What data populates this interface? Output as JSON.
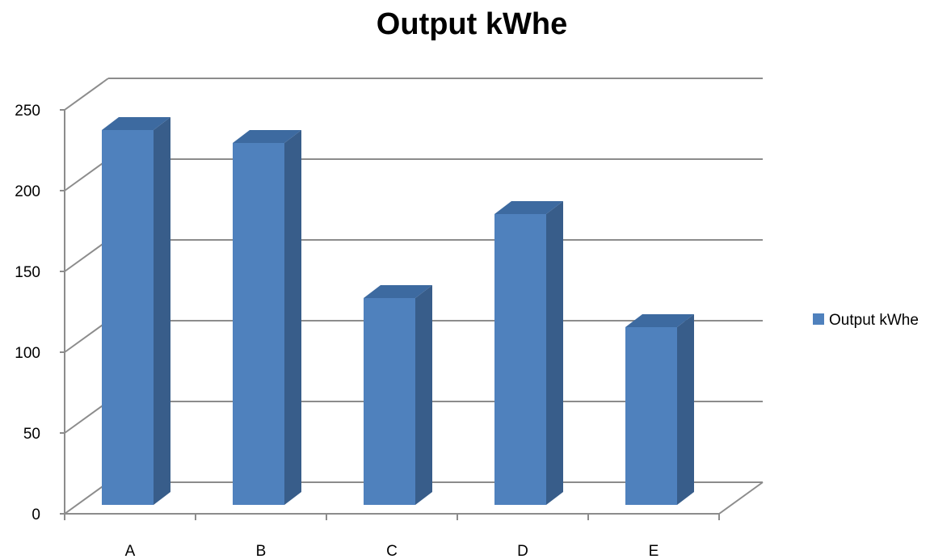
{
  "chart_data": {
    "type": "bar",
    "style": "3d-column",
    "title": "Output kWhe",
    "xlabel": "",
    "ylabel": "",
    "categories": [
      "A",
      "B",
      "C",
      "D",
      "E"
    ],
    "series": [
      {
        "name": "Output kWhe",
        "values": [
          232,
          224,
          128,
          180,
          110
        ]
      }
    ],
    "ylim": [
      0,
      250
    ],
    "yticks": [
      0,
      50,
      100,
      150,
      200,
      250
    ],
    "grid": true,
    "legend": "right",
    "colors": {
      "bar_front": "#4f81bd",
      "bar_side": "#385d8a",
      "bar_top": "#3d6aa0",
      "grid": "#8c8c8c"
    }
  }
}
